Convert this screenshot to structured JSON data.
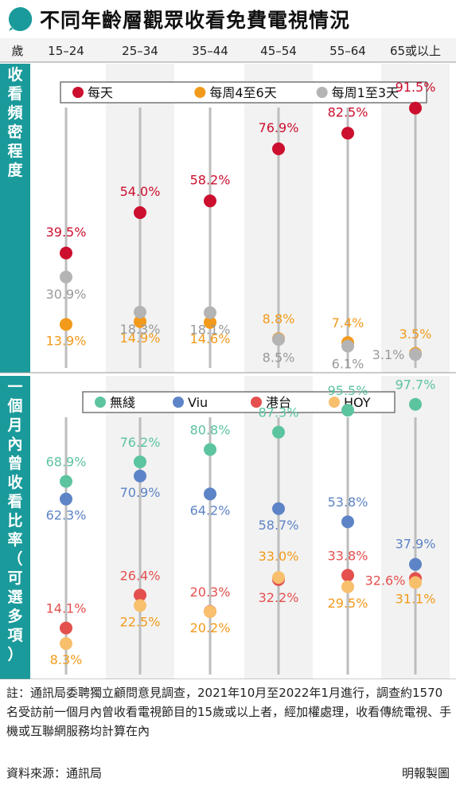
{
  "title": "不同年齡層觀眾收看免費電視情況",
  "age_header": "歲",
  "age_groups": [
    "15–24",
    "25–34",
    "35–44",
    "45–54",
    "55–64",
    "65或以上"
  ],
  "colors": {
    "teal": "#1a9a9a",
    "red": "#cc0f2e",
    "orange": "#f29a1b",
    "gray": "#b4b4b4",
    "green": "#5cc49e",
    "blue": "#5d84c6",
    "coral": "#e4504e",
    "gold": "#f8bf6c"
  },
  "chart_data": [
    {
      "type": "scatter",
      "ylabel": "收看頻密程度",
      "categories": [
        "15–24",
        "25–34",
        "35–44",
        "45–54",
        "55–64",
        "65或以上"
      ],
      "unit": "%",
      "series": [
        {
          "name": "每天",
          "color": "#cc0f2e",
          "values": [
            39.5,
            54.0,
            58.2,
            76.9,
            82.5,
            91.5
          ]
        },
        {
          "name": "每周4至6天",
          "color": "#f29a1b",
          "values": [
            13.9,
            14.9,
            14.6,
            8.8,
            7.4,
            3.5
          ]
        },
        {
          "name": "每周1至3天",
          "color": "#b4b4b4",
          "values": [
            30.9,
            18.3,
            18.1,
            8.5,
            6.1,
            3.1
          ]
        }
      ],
      "labels": [
        [
          "39.5%",
          "54.0%",
          "58.2%",
          "76.9%",
          "82.5%",
          "91.5%"
        ],
        [
          "13.9%",
          "14.9%",
          "14.6%",
          "8.8%",
          "7.4%",
          "3.5%"
        ],
        [
          "30.9%",
          "18.3%",
          "18.1%",
          "8.5%",
          "6.1%",
          "3.1%"
        ]
      ],
      "legend": "top"
    },
    {
      "type": "scatter",
      "ylabel": "一個月內曾收看比率（可選多項）",
      "categories": [
        "15–24",
        "25–34",
        "35–44",
        "45–54",
        "55–64",
        "65或以上"
      ],
      "unit": "%",
      "series": [
        {
          "name": "無綫",
          "color": "#5cc49e",
          "values": [
            68.9,
            76.2,
            80.8,
            87.3,
            95.5,
            97.7
          ]
        },
        {
          "name": "Viu",
          "color": "#5d84c6",
          "values": [
            62.3,
            70.9,
            64.2,
            58.7,
            53.8,
            37.9
          ]
        },
        {
          "name": "港台",
          "color": "#e4504e",
          "values": [
            14.1,
            26.4,
            20.3,
            32.2,
            33.8,
            32.6
          ]
        },
        {
          "name": "HOY",
          "color": "#f8bf6c",
          "values": [
            8.3,
            22.5,
            20.2,
            33.0,
            29.5,
            31.1
          ]
        }
      ],
      "labels": [
        [
          "68.9%",
          "76.2%",
          "80.8%",
          "87.3%",
          "95.5%",
          "97.7%"
        ],
        [
          "62.3%",
          "70.9%",
          "64.2%",
          "58.7%",
          "53.8%",
          "37.9%"
        ],
        [
          "14.1%",
          "26.4%",
          "20.3%",
          "32.2%",
          "33.8%",
          "32.6%"
        ],
        [
          "8.3%",
          "22.5%",
          "20.2%",
          "33.0%",
          "29.5%",
          "31.1%"
        ]
      ],
      "legend": "top"
    }
  ],
  "footnote": "註：通訊局委聘獨立顧問意見調查，2021年10月至2022年1月進行，調查約1570名受訪前一個月內曾收看電視節目的15歲或以上者，經加權處理，收看傳統電視、手機或互聯網服務均計算在內",
  "source": "資料來源：通訊局",
  "credit": "明報製圖"
}
